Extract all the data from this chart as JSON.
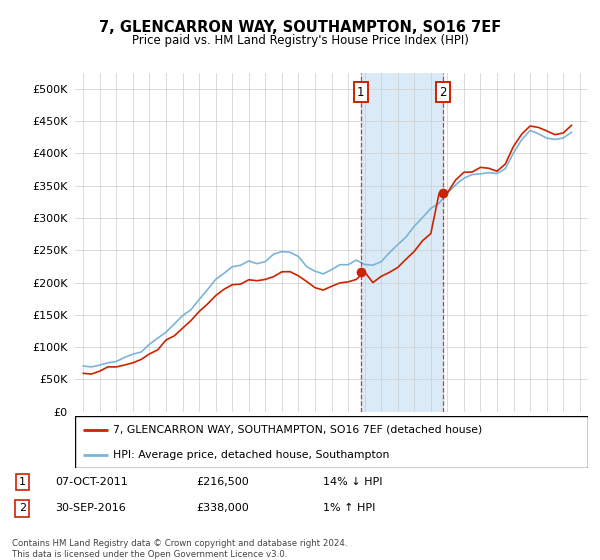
{
  "title": "7, GLENCARRON WAY, SOUTHAMPTON, SO16 7EF",
  "subtitle": "Price paid vs. HM Land Registry's House Price Index (HPI)",
  "property_label": "7, GLENCARRON WAY, SOUTHAMPTON, SO16 7EF (detached house)",
  "hpi_label": "HPI: Average price, detached house, Southampton",
  "sale1_date": "07-OCT-2011",
  "sale1_price": "£216,500",
  "sale1_hpi": "14% ↓ HPI",
  "sale2_date": "30-SEP-2016",
  "sale2_price": "£338,000",
  "sale2_hpi": "1% ↑ HPI",
  "footer1": "Contains HM Land Registry data © Crown copyright and database right 2024.",
  "footer2": "This data is licensed under the Open Government Licence v3.0.",
  "hpi_color": "#7ab4d8",
  "property_color": "#cc2200",
  "shading_color": "#daeaf7",
  "annotation_box_color": "#cc2200",
  "ylim": [
    0,
    525000
  ],
  "yticks": [
    0,
    50000,
    100000,
    150000,
    200000,
    250000,
    300000,
    350000,
    400000,
    450000,
    500000
  ],
  "sale1_x": 2011.77,
  "sale2_x": 2016.75,
  "hpi_years": [
    1995,
    1995.5,
    1996,
    1996.5,
    1997,
    1997.5,
    1998,
    1998.5,
    1999,
    1999.5,
    2000,
    2000.5,
    2001,
    2001.5,
    2002,
    2002.5,
    2003,
    2003.5,
    2004,
    2004.5,
    2005,
    2005.5,
    2006,
    2006.5,
    2007,
    2007.5,
    2008,
    2008.5,
    2009,
    2009.5,
    2010,
    2010.5,
    2011,
    2011.5,
    2012,
    2012.5,
    2013,
    2013.5,
    2014,
    2014.5,
    2015,
    2015.5,
    2016,
    2016.5,
    2017,
    2017.5,
    2018,
    2018.5,
    2019,
    2019.5,
    2020,
    2020.5,
    2021,
    2021.5,
    2022,
    2022.5,
    2023,
    2023.5,
    2024,
    2024.5
  ],
  "hpi_values": [
    68000,
    70000,
    72000,
    75000,
    79000,
    84000,
    89000,
    95000,
    103000,
    113000,
    124000,
    136000,
    148000,
    158000,
    174000,
    191000,
    204000,
    214000,
    224000,
    229000,
    231000,
    229000,
    233000,
    241000,
    248000,
    249000,
    241000,
    228000,
    216000,
    214000,
    221000,
    226000,
    230000,
    234000,
    231000,
    228000,
    234000,
    244000,
    256000,
    271000,
    286000,
    301000,
    314000,
    324000,
    341000,
    354000,
    361000,
    364000,
    368000,
    371000,
    366000,
    376000,
    401000,
    421000,
    436000,
    431000,
    426000,
    421000,
    424000,
    431000
  ],
  "prop_values": [
    60000,
    62000,
    63000,
    66000,
    70000,
    74000,
    78000,
    83000,
    90000,
    98000,
    108000,
    118000,
    129000,
    138000,
    152000,
    167000,
    179000,
    188000,
    197000,
    201000,
    203000,
    201000,
    204000,
    211000,
    217000,
    218000,
    211000,
    199000,
    189000,
    187000,
    193000,
    198000,
    201000,
    205000,
    203000,
    200000,
    205000,
    214000,
    224000,
    237000,
    250000,
    264000,
    275000,
    284000,
    338000,
    360000,
    368000,
    371000,
    375000,
    378000,
    373000,
    383000,
    409000,
    429000,
    445000,
    440000,
    435000,
    430000,
    433000,
    440000
  ]
}
